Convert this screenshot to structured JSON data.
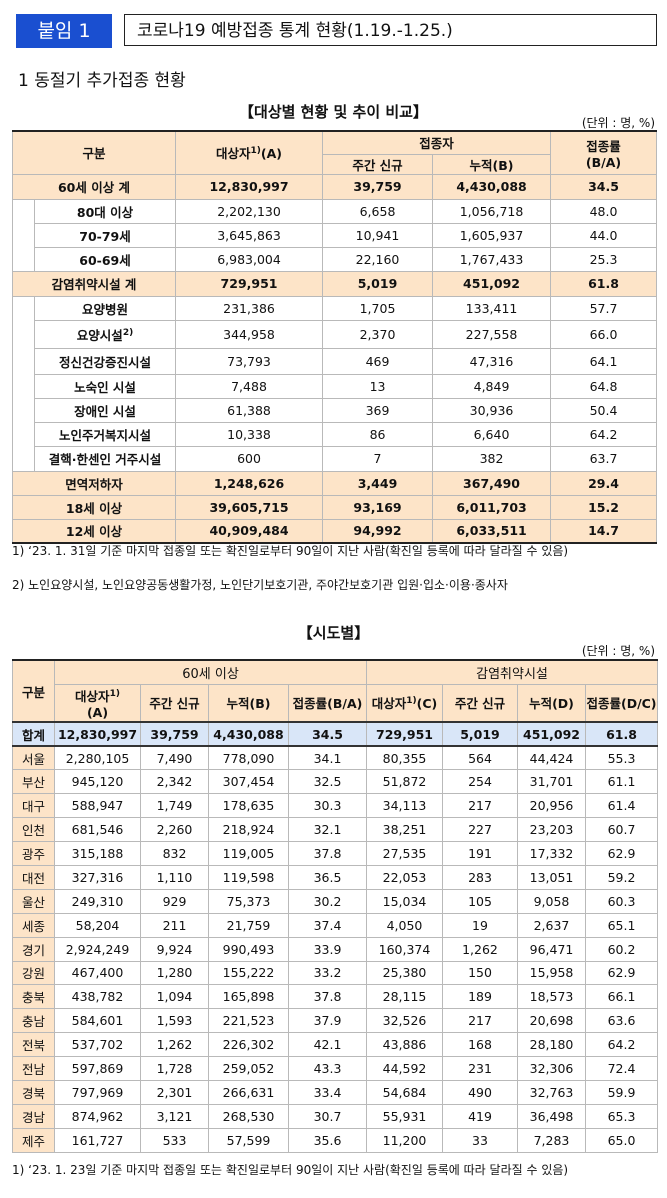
{
  "header": {
    "badge": "붙임 1",
    "title": "코로나19 예방접종 통계 현황(1.19.-1.25.)"
  },
  "section1": "1  동절기 추가접종 현황",
  "table1": {
    "caption": "【대상별 현황 및 추이 비교】",
    "unit": "(단위 : 명, %)",
    "head": {
      "c0": "구분",
      "c1": "대상자",
      "c1sup": "1)",
      "c1b": "(A)",
      "group": "접종자",
      "c2": "주간 신규",
      "c3": "누적(B)",
      "c4": "접종률",
      "c4b": "(B/A)"
    },
    "rows": [
      {
        "label": "60세 이상 계",
        "v": [
          "12,830,997",
          "39,759",
          "4,430,088",
          "34.5"
        ],
        "type": "hl"
      },
      {
        "label": "80대 이상",
        "v": [
          "2,202,130",
          "6,658",
          "1,056,718",
          "48.0"
        ],
        "type": "sub"
      },
      {
        "label": "70-79세",
        "v": [
          "3,645,863",
          "10,941",
          "1,605,937",
          "44.0"
        ],
        "type": "sub"
      },
      {
        "label": "60-69세",
        "v": [
          "6,983,004",
          "22,160",
          "1,767,433",
          "25.3"
        ],
        "type": "sub"
      },
      {
        "label": "감염취약시설 계",
        "v": [
          "729,951",
          "5,019",
          "451,092",
          "61.8"
        ],
        "type": "hl"
      },
      {
        "label": "요양병원",
        "v": [
          "231,386",
          "1,705",
          "133,411",
          "57.7"
        ],
        "type": "sub"
      },
      {
        "label": "요양시설",
        "sup": "2)",
        "v": [
          "344,958",
          "2,370",
          "227,558",
          "66.0"
        ],
        "type": "sub"
      },
      {
        "label": "정신건강증진시설",
        "v": [
          "73,793",
          "469",
          "47,316",
          "64.1"
        ],
        "type": "sub"
      },
      {
        "label": "노숙인 시설",
        "v": [
          "7,488",
          "13",
          "4,849",
          "64.8"
        ],
        "type": "sub"
      },
      {
        "label": "장애인 시설",
        "v": [
          "61,388",
          "369",
          "30,936",
          "50.4"
        ],
        "type": "sub"
      },
      {
        "label": "노인주거복지시설",
        "v": [
          "10,338",
          "86",
          "6,640",
          "64.2"
        ],
        "type": "sub"
      },
      {
        "label": "결핵·한센인 거주시설",
        "v": [
          "600",
          "7",
          "382",
          "63.7"
        ],
        "type": "sub"
      },
      {
        "label": "면역저하자",
        "v": [
          "1,248,626",
          "3,449",
          "367,490",
          "29.4"
        ],
        "type": "hl"
      },
      {
        "label": "18세 이상",
        "v": [
          "39,605,715",
          "93,169",
          "6,011,703",
          "15.2"
        ],
        "type": "hl"
      },
      {
        "label": "12세 이상",
        "v": [
          "40,909,484",
          "94,992",
          "6,033,511",
          "14.7"
        ],
        "type": "hl"
      }
    ],
    "footnotes": [
      "1)  ‘23. 1. 31일 기준 마지막 접종일 또는 확진일로부터 90일이 지난 사람(확진일 등록에 따라 달라질 수 있음)",
      "2) 노인요양시설, 노인요양공동생활가정, 노인단기보호기관, 주야간보호기관 입원·입소·이용·종사자"
    ]
  },
  "table2": {
    "caption": "【시도별】",
    "unit": "(단위 : 명, %)",
    "head": {
      "c0": "구분",
      "g1": "60세 이상",
      "g2": "감염취약시설",
      "a1": "대상자",
      "a1sup": "1)",
      "a1b": "(A)",
      "a2": "주간 신규",
      "a3": "누적(B)",
      "a4": "접종률(B/A)",
      "b1": "대상자",
      "b1sup": "1)",
      "b1b": "(C)",
      "b2": "주간 신규",
      "b3": "누적(D)",
      "b4": "접종률(D/C)"
    },
    "total": {
      "label": "합계",
      "v": [
        "12,830,997",
        "39,759",
        "4,430,088",
        "34.5",
        "729,951",
        "5,019",
        "451,092",
        "61.8"
      ]
    },
    "rows": [
      {
        "label": "서울",
        "v": [
          "2,280,105",
          "7,490",
          "778,090",
          "34.1",
          "80,355",
          "564",
          "44,424",
          "55.3"
        ]
      },
      {
        "label": "부산",
        "v": [
          "945,120",
          "2,342",
          "307,454",
          "32.5",
          "51,872",
          "254",
          "31,701",
          "61.1"
        ]
      },
      {
        "label": "대구",
        "v": [
          "588,947",
          "1,749",
          "178,635",
          "30.3",
          "34,113",
          "217",
          "20,956",
          "61.4"
        ]
      },
      {
        "label": "인천",
        "v": [
          "681,546",
          "2,260",
          "218,924",
          "32.1",
          "38,251",
          "227",
          "23,203",
          "60.7"
        ]
      },
      {
        "label": "광주",
        "v": [
          "315,188",
          "832",
          "119,005",
          "37.8",
          "27,535",
          "191",
          "17,332",
          "62.9"
        ]
      },
      {
        "label": "대전",
        "v": [
          "327,316",
          "1,110",
          "119,598",
          "36.5",
          "22,053",
          "283",
          "13,051",
          "59.2"
        ]
      },
      {
        "label": "울산",
        "v": [
          "249,310",
          "929",
          "75,373",
          "30.2",
          "15,034",
          "105",
          "9,058",
          "60.3"
        ]
      },
      {
        "label": "세종",
        "v": [
          "58,204",
          "211",
          "21,759",
          "37.4",
          "4,050",
          "19",
          "2,637",
          "65.1"
        ]
      },
      {
        "label": "경기",
        "v": [
          "2,924,249",
          "9,924",
          "990,493",
          "33.9",
          "160,374",
          "1,262",
          "96,471",
          "60.2"
        ]
      },
      {
        "label": "강원",
        "v": [
          "467,400",
          "1,280",
          "155,222",
          "33.2",
          "25,380",
          "150",
          "15,958",
          "62.9"
        ]
      },
      {
        "label": "충북",
        "v": [
          "438,782",
          "1,094",
          "165,898",
          "37.8",
          "28,115",
          "189",
          "18,573",
          "66.1"
        ]
      },
      {
        "label": "충남",
        "v": [
          "584,601",
          "1,593",
          "221,523",
          "37.9",
          "32,526",
          "217",
          "20,698",
          "63.6"
        ]
      },
      {
        "label": "전북",
        "v": [
          "537,702",
          "1,262",
          "226,302",
          "42.1",
          "43,886",
          "168",
          "28,180",
          "64.2"
        ]
      },
      {
        "label": "전남",
        "v": [
          "597,869",
          "1,728",
          "259,052",
          "43.3",
          "44,592",
          "231",
          "32,306",
          "72.4"
        ]
      },
      {
        "label": "경북",
        "v": [
          "797,969",
          "2,301",
          "266,631",
          "33.4",
          "54,684",
          "490",
          "32,763",
          "59.9"
        ]
      },
      {
        "label": "경남",
        "v": [
          "874,962",
          "3,121",
          "268,530",
          "30.7",
          "55,931",
          "419",
          "36,498",
          "65.3"
        ]
      },
      {
        "label": "제주",
        "v": [
          "161,727",
          "533",
          "57,599",
          "35.6",
          "11,200",
          "33",
          "7,283",
          "65.0"
        ]
      }
    ],
    "footnote": "1)  ‘23. 1. 23일 기준 마지막 접종일 또는 확진일로부터 90일이 지난 사람(확진일 등록에 따라 달라질 수 있음)"
  },
  "colors": {
    "badge": "#1a4fd0",
    "header_fill": "#fde4c8",
    "total_fill": "#d9e6f8"
  }
}
